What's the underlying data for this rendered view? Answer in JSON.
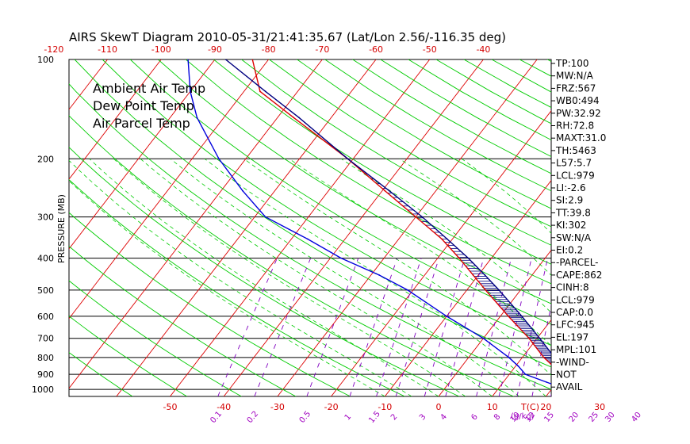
{
  "title": "AIRS SkewT Diagram 2010-05-31/21:41:35.67 (Lat/Lon 2.56/-116.35 deg)",
  "colors": {
    "ambient": "#dd0000",
    "dewpoint": "#0000dd",
    "parcel": "#000080",
    "isotherm": "#dd0000",
    "dry_adiabat": "#00cc00",
    "moist_adiabat": "#00cc00",
    "mixing_ratio": "#8000c0",
    "isobar": "#000000",
    "cape_hatch": "#000080"
  },
  "chart_data": {
    "type": "line",
    "ylabel": "PRESSURE (MB)",
    "xlabel": "T(C)",
    "pressure_ticks": [
      "100",
      "200",
      "300",
      "400",
      "500",
      "600",
      "700",
      "800",
      "900",
      "1000"
    ],
    "temp_ticks_top": [
      "-120",
      "-110",
      "-100",
      "-90",
      "-80",
      "-70",
      "-60",
      "-50",
      "-40"
    ],
    "temp_ticks_bottom": [
      "-50",
      "-40",
      "-30",
      "-20",
      "-10",
      "0",
      "10",
      "20",
      "30"
    ],
    "bottom_unit_label": "T(C)",
    "mixing_ratio_ticks": [
      "0.1",
      "0.2",
      "0.5",
      "1",
      "1.5",
      "2",
      "3",
      "4",
      "6",
      "8",
      "10",
      "12",
      "15",
      "20",
      "25",
      "30",
      "40"
    ],
    "mixing_ratio_unit": "(g/kg)",
    "legend": [
      {
        "label": "Ambient Air Temp",
        "color": "#dd0000"
      },
      {
        "label": "Dew Point Temp",
        "color": "#0000dd"
      },
      {
        "label": "Air Parcel Temp",
        "color": "#000080"
      }
    ],
    "series": [
      {
        "name": "Ambient Air Temp",
        "points": [
          {
            "p": 1000,
            "t": 25.5
          },
          {
            "p": 975,
            "t": 23.5
          },
          {
            "p": 950,
            "t": 22.0
          },
          {
            "p": 900,
            "t": 19.5
          },
          {
            "p": 850,
            "t": 17.0
          },
          {
            "p": 800,
            "t": 14.0
          },
          {
            "p": 700,
            "t": 8.5
          },
          {
            "p": 600,
            "t": 1.5
          },
          {
            "p": 500,
            "t": -6.5
          },
          {
            "p": 450,
            "t": -11.0
          },
          {
            "p": 400,
            "t": -16.0
          },
          {
            "p": 350,
            "t": -22.0
          },
          {
            "p": 300,
            "t": -30.0
          },
          {
            "p": 250,
            "t": -39.5
          },
          {
            "p": 200,
            "t": -51.0
          },
          {
            "p": 150,
            "t": -67.0
          },
          {
            "p": 125,
            "t": -77.0
          },
          {
            "p": 100,
            "t": -83.0
          }
        ]
      },
      {
        "name": "Dew Point Temp",
        "points": [
          {
            "p": 1000,
            "t": 22.0
          },
          {
            "p": 975,
            "t": 20.5
          },
          {
            "p": 950,
            "t": 18.0
          },
          {
            "p": 900,
            "t": 13.0
          },
          {
            "p": 850,
            "t": 10.5
          },
          {
            "p": 800,
            "t": 7.5
          },
          {
            "p": 700,
            "t": 0.0
          },
          {
            "p": 600,
            "t": -10.0
          },
          {
            "p": 500,
            "t": -21.0
          },
          {
            "p": 450,
            "t": -28.5
          },
          {
            "p": 400,
            "t": -38.0
          },
          {
            "p": 350,
            "t": -47.0
          },
          {
            "p": 300,
            "t": -58.0
          },
          {
            "p": 250,
            "t": -66.0
          },
          {
            "p": 200,
            "t": -75.0
          },
          {
            "p": 150,
            "t": -85.0
          },
          {
            "p": 125,
            "t": -90.0
          },
          {
            "p": 100,
            "t": -95.0
          }
        ]
      },
      {
        "name": "Air Parcel Temp",
        "points": [
          {
            "p": 1000,
            "t": 26.5
          },
          {
            "p": 979,
            "t": 24.5
          },
          {
            "p": 950,
            "t": 23.2
          },
          {
            "p": 900,
            "t": 21.0
          },
          {
            "p": 850,
            "t": 18.6
          },
          {
            "p": 800,
            "t": 16.0
          },
          {
            "p": 700,
            "t": 10.5
          },
          {
            "p": 600,
            "t": 4.0
          },
          {
            "p": 500,
            "t": -4.0
          },
          {
            "p": 450,
            "t": -8.8
          },
          {
            "p": 400,
            "t": -14.3
          },
          {
            "p": 350,
            "t": -21.0
          },
          {
            "p": 300,
            "t": -28.8
          },
          {
            "p": 250,
            "t": -38.7
          },
          {
            "p": 200,
            "t": -51.0
          },
          {
            "p": 150,
            "t": -66.0
          },
          {
            "p": 125,
            "t": -76.0
          },
          {
            "p": 100,
            "t": -88.0
          }
        ]
      }
    ]
  },
  "indices": [
    "TP:100",
    "MW:N/A",
    "FRZ:567",
    "WB0:494",
    "PW:32.92",
    "RH:72.8",
    "MAXT:31.0",
    "TH:5463",
    "L57:5.7",
    "LCL:979",
    "LI:-2.6",
    "SI:2.9",
    "TT:39.8",
    "KI:302",
    "SW:N/A",
    "EI:0.2",
    "-PARCEL-",
    "CAPE:862",
    "CINH:8",
    "LCL:979",
    "CAP:0.0",
    "LFC:945",
    "EL:197",
    "MPL:101",
    "-WIND-",
    "NOT",
    "AVAIL"
  ]
}
